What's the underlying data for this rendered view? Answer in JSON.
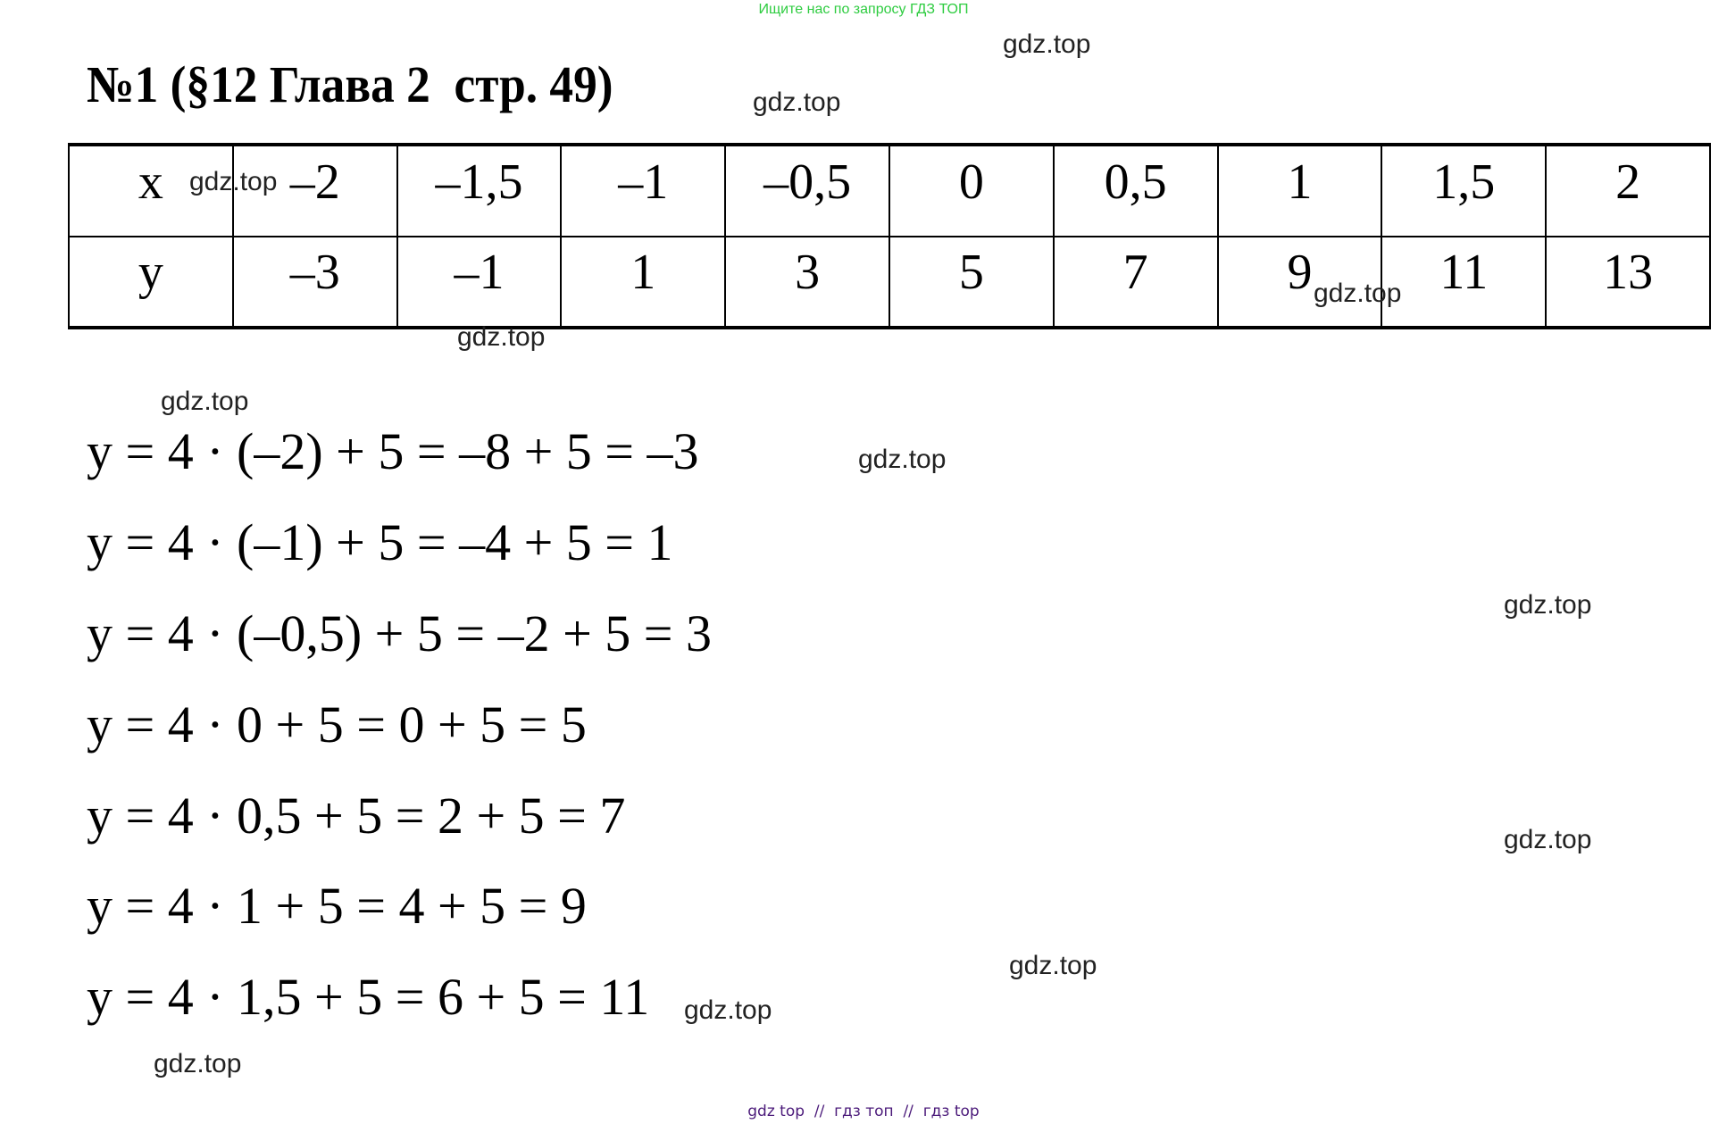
{
  "banner": "Ищите нас по запросу ГДЗ ТОП",
  "title": "№1 (§12 Глава 2  стр. 49)",
  "table": {
    "x_label": "x",
    "y_label": "y",
    "x_values": [
      "–2",
      "–1,5",
      "–1",
      "–0,5",
      "0",
      "0,5",
      "1",
      "1,5",
      "2"
    ],
    "y_values": [
      "–3",
      "–1",
      "1",
      "3",
      "5",
      "7",
      "9",
      "11",
      "13"
    ]
  },
  "equations": [
    "y = 4 · (–2) + 5 = –8 + 5 = –3",
    "y = 4 · (–1) + 5 = –4 + 5 = 1",
    "y = 4 · (–0,5) + 5 = –2 + 5 = 3",
    "y = 4 · 0 + 5 = 0 + 5 = 5",
    "y = 4 · 0,5 + 5 = 2 + 5 = 7",
    "y = 4 · 1 + 5 = 4 + 5 = 9",
    "y = 4 · 1,5 + 5 = 6 + 5 = 11"
  ],
  "watermark": "gdz.top",
  "footer": "gdz top  //  гдз топ  //  гдз top",
  "colors": {
    "banner": "#2ecc40",
    "footer": "#4b1a7a"
  }
}
